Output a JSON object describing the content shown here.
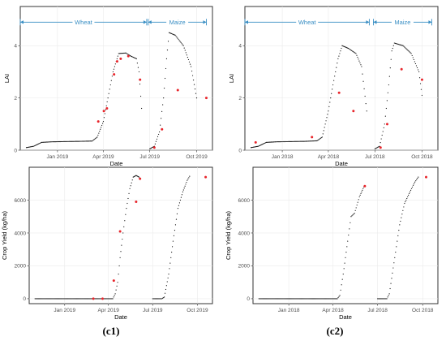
{
  "colors": {
    "simulated": "#111111",
    "observed": "#e8252b",
    "season_arrow": "#3a8fc4"
  },
  "captions": [
    "(c1)",
    "(c2)"
  ],
  "chart_data": [
    {
      "id": "c1-lai",
      "type": "scatter",
      "xlabel": "Date",
      "ylabel": "LAI",
      "x_type": "date",
      "xlim": [
        "2018-10-20",
        "2019-11-01"
      ],
      "ylim": [
        0,
        5.5
      ],
      "xticks": [
        {
          "date": "2019-01-01",
          "label": "Jan 2019"
        },
        {
          "date": "2019-04-01",
          "label": "Apr 2019"
        },
        {
          "date": "2019-07-01",
          "label": "Jul 2019"
        },
        {
          "date": "2019-10-01",
          "label": "Oct 2019"
        }
      ],
      "yticks": [
        0,
        2,
        4
      ],
      "grid": true,
      "seasons": [
        {
          "label": "Wheat",
          "start": "2018-10-20",
          "end": "2019-06-25",
          "y": 4.9
        },
        {
          "label": "Maize",
          "start": "2019-06-28",
          "end": "2019-10-20",
          "y": 4.9
        }
      ],
      "series": [
        {
          "role": "simulated",
          "segments": [
            [
              [
                "2018-11-01",
                0.1
              ],
              [
                "2018-11-15",
                0.15
              ],
              [
                "2018-12-01",
                0.3
              ],
              [
                "2018-12-20",
                0.32
              ],
              [
                "2019-01-15",
                0.33
              ],
              [
                "2019-02-15",
                0.34
              ],
              [
                "2019-03-10",
                0.35
              ],
              [
                "2019-03-20",
                0.5
              ],
              [
                "2019-04-01",
                1.1
              ],
              [
                "2019-04-10",
                2.0
              ],
              [
                "2019-04-20",
                3.0
              ],
              [
                "2019-05-01",
                3.7
              ],
              [
                "2019-05-15",
                3.72
              ],
              [
                "2019-05-25",
                3.6
              ],
              [
                "2019-06-05",
                3.5
              ],
              [
                "2019-06-10",
                3.0
              ],
              [
                "2019-06-15",
                1.6
              ]
            ],
            [
              [
                "2019-07-01",
                0.05
              ],
              [
                "2019-07-10",
                0.15
              ],
              [
                "2019-07-20",
                0.7
              ],
              [
                "2019-07-28",
                2.0
              ],
              [
                "2019-08-03",
                3.5
              ],
              [
                "2019-08-08",
                4.5
              ],
              [
                "2019-08-20",
                4.4
              ],
              [
                "2019-09-05",
                4.0
              ],
              [
                "2019-09-20",
                3.2
              ],
              [
                "2019-10-01",
                2.0
              ]
            ]
          ]
        },
        {
          "role": "observed",
          "points": [
            [
              "2019-03-22",
              1.1
            ],
            [
              "2019-04-02",
              1.5
            ],
            [
              "2019-04-08",
              1.6
            ],
            [
              "2019-04-22",
              2.9
            ],
            [
              "2019-04-28",
              3.4
            ],
            [
              "2019-05-05",
              3.5
            ],
            [
              "2019-05-20",
              3.6
            ],
            [
              "2019-06-12",
              2.7
            ],
            [
              "2019-07-10",
              0.1
            ],
            [
              "2019-07-25",
              0.8
            ],
            [
              "2019-08-25",
              2.3
            ],
            [
              "2019-10-20",
              2.0
            ]
          ]
        }
      ]
    },
    {
      "id": "c2-lai",
      "type": "scatter",
      "xlabel": "Date",
      "ylabel": "LAI",
      "x_type": "date",
      "xlim": [
        "2017-10-20",
        "2018-11-01"
      ],
      "ylim": [
        0,
        5.5
      ],
      "xticks": [
        {
          "date": "2018-01-01",
          "label": "Jan 2018"
        },
        {
          "date": "2018-04-01",
          "label": "Apr 2018"
        },
        {
          "date": "2018-07-01",
          "label": "Jul 2018"
        },
        {
          "date": "2018-10-01",
          "label": "Oct 2018"
        }
      ],
      "yticks": [
        0,
        2,
        4
      ],
      "grid": true,
      "seasons": [
        {
          "label": "Wheat",
          "start": "2017-10-20",
          "end": "2018-06-20",
          "y": 4.9
        },
        {
          "label": "Maize",
          "start": "2018-06-28",
          "end": "2018-10-20",
          "y": 4.9
        }
      ],
      "series": [
        {
          "role": "simulated",
          "segments": [
            [
              [
                "2017-11-01",
                0.1
              ],
              [
                "2017-11-15",
                0.15
              ],
              [
                "2017-12-01",
                0.3
              ],
              [
                "2017-12-20",
                0.32
              ],
              [
                "2018-01-15",
                0.33
              ],
              [
                "2018-02-15",
                0.34
              ],
              [
                "2018-03-10",
                0.36
              ],
              [
                "2018-03-20",
                0.5
              ],
              [
                "2018-04-01",
                1.5
              ],
              [
                "2018-04-10",
                2.5
              ],
              [
                "2018-04-20",
                3.5
              ],
              [
                "2018-04-28",
                4.0
              ],
              [
                "2018-05-10",
                3.9
              ],
              [
                "2018-05-25",
                3.7
              ],
              [
                "2018-06-05",
                3.2
              ],
              [
                "2018-06-15",
                1.5
              ]
            ],
            [
              [
                "2018-07-01",
                0.05
              ],
              [
                "2018-07-10",
                0.15
              ],
              [
                "2018-07-20",
                1.0
              ],
              [
                "2018-07-28",
                2.5
              ],
              [
                "2018-08-03",
                3.8
              ],
              [
                "2018-08-08",
                4.1
              ],
              [
                "2018-08-25",
                4.0
              ],
              [
                "2018-09-10",
                3.7
              ],
              [
                "2018-09-25",
                3.0
              ],
              [
                "2018-10-01",
                2.1
              ]
            ]
          ]
        },
        {
          "role": "observed",
          "points": [
            [
              "2017-11-10",
              0.3
            ],
            [
              "2018-02-28",
              0.5
            ],
            [
              "2018-04-22",
              2.2
            ],
            [
              "2018-05-20",
              1.5
            ],
            [
              "2018-07-12",
              0.1
            ],
            [
              "2018-07-25",
              1.0
            ],
            [
              "2018-08-22",
              3.1
            ],
            [
              "2018-10-01",
              2.7
            ]
          ]
        }
      ]
    },
    {
      "id": "c1-yield",
      "type": "scatter",
      "xlabel": "Date",
      "ylabel": "Crop Yield (kg/ha)",
      "x_type": "date",
      "xlim": [
        "2018-10-20",
        "2019-11-01"
      ],
      "ylim": [
        -300,
        8000
      ],
      "xticks": [
        {
          "date": "2019-01-01",
          "label": "Jan 2019"
        },
        {
          "date": "2019-04-01",
          "label": "Apr 2019"
        },
        {
          "date": "2019-07-01",
          "label": "Jul 2019"
        },
        {
          "date": "2019-10-01",
          "label": "Oct 2019"
        }
      ],
      "yticks": [
        0,
        2000,
        4000,
        6000
      ],
      "grid": true,
      "series": [
        {
          "role": "simulated",
          "segments": [
            [
              [
                "2018-11-01",
                0
              ],
              [
                "2019-04-10",
                0
              ],
              [
                "2019-04-15",
                300
              ],
              [
                "2019-04-20",
                1000
              ],
              [
                "2019-04-25",
                2500
              ],
              [
                "2019-05-01",
                4000
              ],
              [
                "2019-05-08",
                5500
              ],
              [
                "2019-05-15",
                6700
              ],
              [
                "2019-05-22",
                7400
              ],
              [
                "2019-05-28",
                7500
              ],
              [
                "2019-06-03",
                7400
              ]
            ],
            [
              [
                "2019-07-01",
                0
              ],
              [
                "2019-07-20",
                0
              ],
              [
                "2019-07-25",
                100
              ],
              [
                "2019-08-03",
                1500
              ],
              [
                "2019-08-12",
                3500
              ],
              [
                "2019-08-22",
                5500
              ],
              [
                "2019-09-01",
                6500
              ],
              [
                "2019-09-10",
                7200
              ],
              [
                "2019-09-15",
                7450
              ]
            ]
          ]
        },
        {
          "role": "observed",
          "points": [
            [
              "2019-03-01",
              0
            ],
            [
              "2019-03-20",
              0
            ],
            [
              "2019-04-12",
              1100
            ],
            [
              "2019-04-25",
              4100
            ],
            [
              "2019-05-28",
              5900
            ],
            [
              "2019-06-05",
              7300
            ],
            [
              "2019-10-18",
              7400
            ]
          ]
        }
      ]
    },
    {
      "id": "c2-yield",
      "type": "scatter",
      "xlabel": "Date",
      "ylabel": "Crop Yield (kg/ha)",
      "x_type": "date",
      "xlim": [
        "2017-10-20",
        "2018-11-01"
      ],
      "ylim": [
        -300,
        8000
      ],
      "xticks": [
        {
          "date": "2018-01-01",
          "label": "Jan 2018"
        },
        {
          "date": "2018-04-01",
          "label": "Apr 2018"
        },
        {
          "date": "2018-07-01",
          "label": "Jul 2018"
        },
        {
          "date": "2018-10-01",
          "label": "Oct 2018"
        }
      ],
      "yticks": [
        0,
        2000,
        4000,
        6000
      ],
      "grid": true,
      "series": [
        {
          "role": "simulated",
          "segments": [
            [
              [
                "2017-11-01",
                0
              ],
              [
                "2018-04-10",
                0
              ],
              [
                "2018-04-15",
                200
              ],
              [
                "2018-04-22",
                1500
              ],
              [
                "2018-05-01",
                3500
              ],
              [
                "2018-05-08",
                5000
              ],
              [
                "2018-05-15",
                5200
              ],
              [
                "2018-05-25",
                6200
              ],
              [
                "2018-06-03",
                6800
              ]
            ],
            [
              [
                "2018-07-01",
                0
              ],
              [
                "2018-07-20",
                0
              ],
              [
                "2018-07-25",
                300
              ],
              [
                "2018-08-05",
                2500
              ],
              [
                "2018-08-15",
                4500
              ],
              [
                "2018-08-25",
                5800
              ],
              [
                "2018-09-05",
                6500
              ],
              [
                "2018-09-15",
                7100
              ],
              [
                "2018-09-22",
                7400
              ]
            ]
          ]
        },
        {
          "role": "observed",
          "points": [
            [
              "2018-06-05",
              6850
            ],
            [
              "2018-10-08",
              7400
            ]
          ]
        }
      ]
    }
  ]
}
